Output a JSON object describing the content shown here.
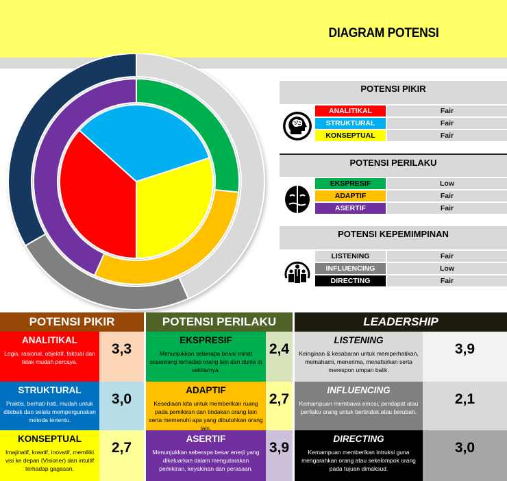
{
  "header": {
    "title": "DIAGRAM POTENSI"
  },
  "colors": {
    "banner": "#ffff66",
    "analitikal": "#ff0000",
    "struktural": "#00b0f0",
    "konseptual": "#ffff00",
    "ekspresif": "#00b050",
    "adaptif": "#ffc000",
    "asertif": "#7030a0",
    "listening": "#d9d9d9",
    "influencing": "#808080",
    "directing": "#17375e"
  },
  "chart_data": {
    "type": "pie",
    "title": "DIAGRAM POTENSI",
    "subtype": "multi-level donut",
    "rings": [
      {
        "name": "Potensi Pikir",
        "level": "inner",
        "categories": [
          "Analitikal",
          "Struktural",
          "Konseptual"
        ],
        "values": [
          3.3,
          3.0,
          2.7
        ],
        "colors": [
          "#ff0000",
          "#00b0f0",
          "#ffff00"
        ]
      },
      {
        "name": "Potensi Perilaku",
        "level": "middle",
        "categories": [
          "Ekspresif",
          "Adaptif",
          "Asertif"
        ],
        "values": [
          2.4,
          2.7,
          3.9
        ],
        "colors": [
          "#00b050",
          "#ffc000",
          "#7030a0"
        ]
      },
      {
        "name": "Leadership",
        "level": "outer",
        "categories": [
          "Listening",
          "Influencing",
          "Directing"
        ],
        "values": [
          3.9,
          2.1,
          3.0
        ],
        "colors": [
          "#d9d9d9",
          "#808080",
          "#17375e"
        ]
      }
    ],
    "legend": "none"
  },
  "panels": [
    {
      "title": "POTENSI PIKIR",
      "icon": "brain-head-icon",
      "rows": [
        {
          "label": "ANALITIKAL",
          "value": "Fair"
        },
        {
          "label": "STRUKTURAL",
          "value": "Fair"
        },
        {
          "label": "KONSEPTUAL",
          "value": "Fair"
        }
      ]
    },
    {
      "title": "POTENSI PERILAKU",
      "icon": "masks-face-icon",
      "rows": [
        {
          "label": "EKSPRESIF",
          "value": "Low"
        },
        {
          "label": "ADAPTIF",
          "value": "Fair"
        },
        {
          "label": "ASERTIF",
          "value": "Fair"
        }
      ]
    },
    {
      "title": "POTENSI KEPEMIMPINAN",
      "icon": "team-leader-icon",
      "rows": [
        {
          "label": "LISTENING",
          "value": "Fair"
        },
        {
          "label": "INFLUENCING",
          "value": "Low"
        },
        {
          "label": "DIRECTING",
          "value": "Fair"
        }
      ]
    }
  ],
  "tables": [
    {
      "title": "POTENSI PIKIR",
      "rows": [
        {
          "name": "ANALITIKAL",
          "desc": "Logis, rasional, objektif, faktual dan tidak mudah percaya.",
          "score": "3,3"
        },
        {
          "name": "STRUKTURAL",
          "desc": "Praktis, berhati-hati, mudah untuk ditebak dan selalu mempergunakan metoda tertentu.",
          "score": "3,0"
        },
        {
          "name": "KONSEPTUAL",
          "desc": "Imajinatif, kreatif, inovatif, memiliki visi ke depan (Visioner) dan intuitif terhadap gagasan.",
          "score": "2,7"
        }
      ]
    },
    {
      "title": "POTENSI PERILAKU",
      "rows": [
        {
          "name": "EKSPRESIF",
          "desc": "Menunjukkan seberapa besar minat seseorang terhadap orang lain dan dunia di sekitarnya.",
          "score": "2,4"
        },
        {
          "name": "ADAPTIF",
          "desc": "Kesediaan kita untuk memberikan ruang pada pemikiran dan tindakan orang lain serta memenuhi apa yang dibutuhkan orang lain.",
          "score": "2,7"
        },
        {
          "name": "ASERTIF",
          "desc": "Menunjukkan seberapa besar enerji yang dikeluarkan dalam mengutarakan pemikiran, keyakinan dan perasaan.",
          "score": "3,9"
        }
      ]
    },
    {
      "title": "LEADERSHIP",
      "rows": [
        {
          "name": "LISTENING",
          "desc": "Keinginan & kesabaran untuk memperhatikan, memahami, menerima, menafsirkan serta merespon umpan balik.",
          "score": "3,9"
        },
        {
          "name": "INFLUENCING",
          "desc": "Kemampuan membawa emosi, pendapat atau perilaku orang untuk bertindak atau berubah.",
          "score": "2,1"
        },
        {
          "name": "DIRECTING",
          "desc": "Kemampuan memberikan intruksi guna mengarahkan orang atau sekelompok orang pada tujuan dimaksud.",
          "score": "3,0"
        }
      ]
    }
  ]
}
